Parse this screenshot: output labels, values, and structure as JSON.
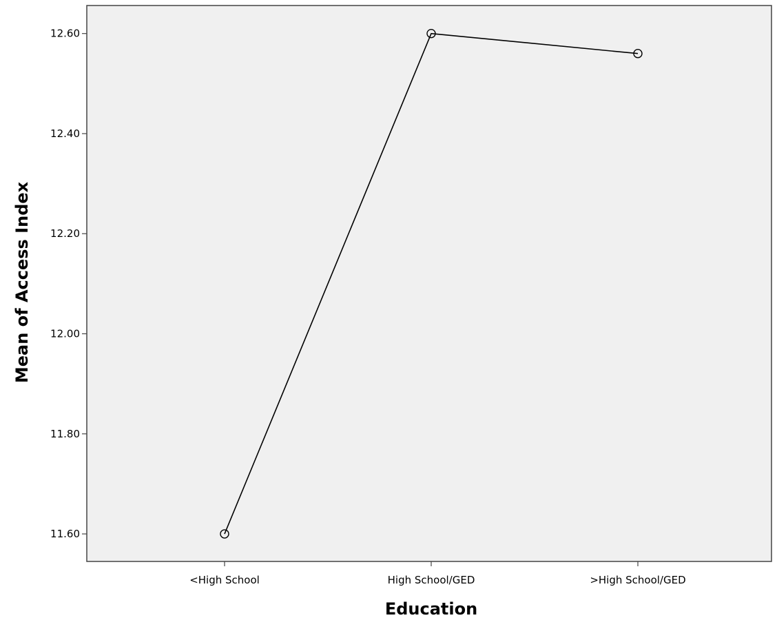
{
  "chart_data": {
    "type": "line",
    "title": "",
    "xlabel": "Education",
    "ylabel": "Mean of Access Index",
    "categories": [
      "<High School",
      "High School/GED",
      ">High School/GED"
    ],
    "series": [
      {
        "values": [
          11.6,
          12.6,
          12.56
        ]
      }
    ],
    "ylim": [
      11.545,
      12.656
    ],
    "yticks": [
      11.6,
      11.8,
      12.0,
      12.2,
      12.4,
      12.6
    ],
    "ytick_labels": [
      "11.60",
      "11.80",
      "12.00",
      "12.20",
      "12.40",
      "12.60"
    ],
    "grid": false,
    "markers": "open-circle",
    "colors": {
      "plot_background": "#f0f0f0",
      "line": "#000000",
      "frame": "#444444"
    }
  }
}
